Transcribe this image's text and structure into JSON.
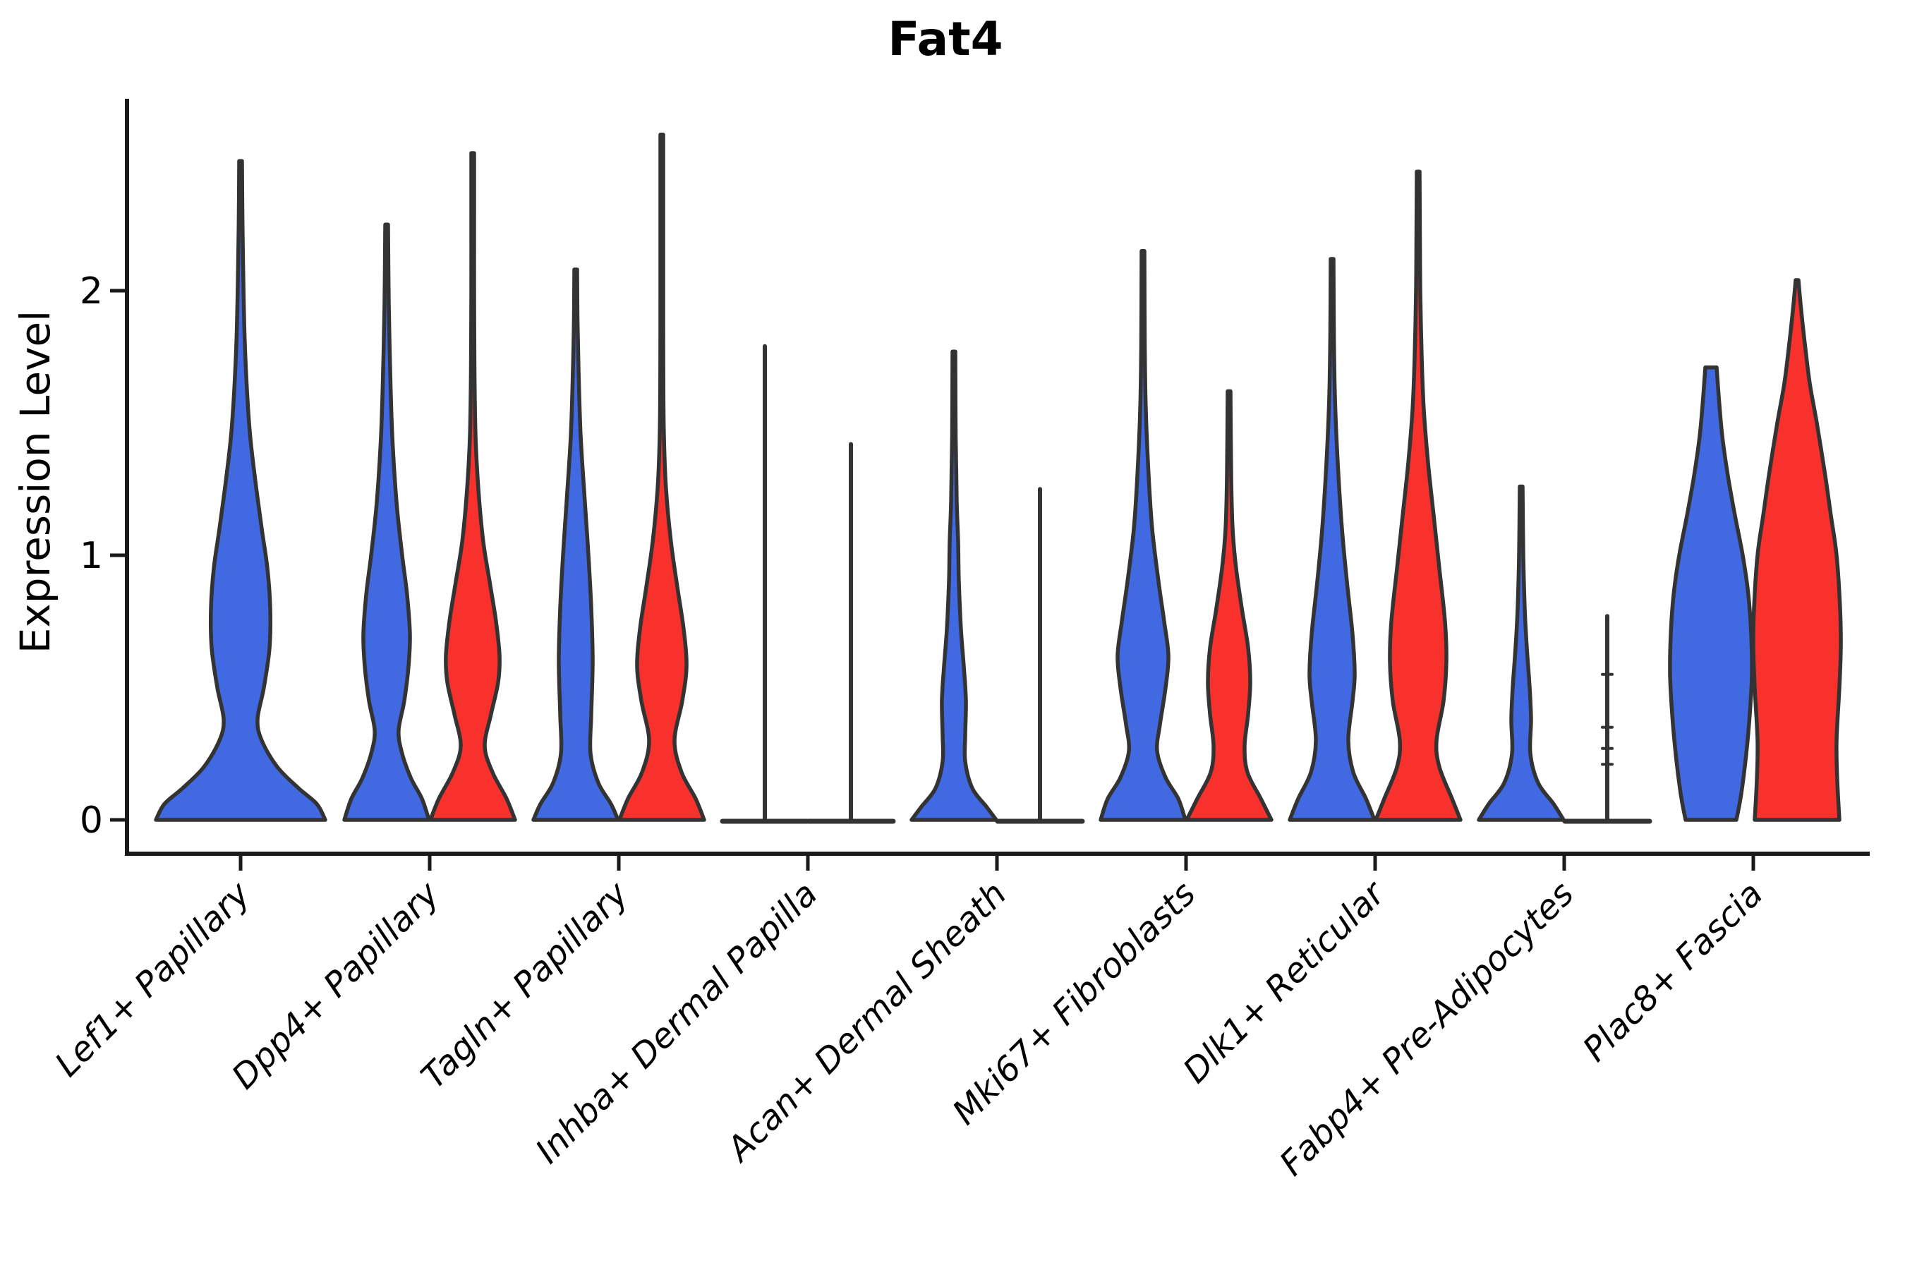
{
  "chart_data": {
    "type": "violin",
    "title": "Fat4",
    "ylabel": "Expression Level",
    "yticks": [
      0,
      1,
      2
    ],
    "ylim": [
      0,
      2.72
    ],
    "grid": false,
    "legend": "none",
    "colors": {
      "blue": "#4169E1",
      "red": "#F8312D",
      "outline": "#333333",
      "axis": "#1a1a1a"
    },
    "categories": [
      "Lef1+ Papillary",
      "Dpp4+ Papillary",
      "Tagln+ Papillary",
      "Inhba+ Dermal Papilla",
      "Acan+ Dermal Sheath",
      "Mki67+ Fibroblasts",
      "Dlk1+ Reticular",
      "Fabp4+ Pre-Adipocytes",
      "Plac8+ Fascia"
    ],
    "series": [
      {
        "name": "blue",
        "color": "#4169E1",
        "max_expression": [
          2.49,
          2.25,
          2.08,
          1.79,
          1.77,
          2.15,
          2.12,
          1.26,
          1.71
        ]
      },
      {
        "name": "red",
        "color": "#F8312D",
        "max_expression": [
          null,
          2.52,
          2.59,
          1.42,
          1.25,
          1.62,
          2.45,
          0.77,
          2.04
        ]
      }
    ],
    "violins": [
      {
        "category": 0,
        "series": "blue",
        "kind": "violin",
        "center_offset": 0,
        "profile": [
          [
            0,
            120
          ],
          [
            0.06,
            108
          ],
          [
            0.12,
            82
          ],
          [
            0.2,
            52
          ],
          [
            0.3,
            30
          ],
          [
            0.38,
            24
          ],
          [
            0.5,
            33
          ],
          [
            0.65,
            41
          ],
          [
            0.8,
            42
          ],
          [
            0.95,
            38
          ],
          [
            1.1,
            30
          ],
          [
            1.3,
            20
          ],
          [
            1.5,
            12
          ],
          [
            1.8,
            6
          ],
          [
            2.1,
            3.5
          ],
          [
            2.3,
            2.5
          ],
          [
            2.49,
            2
          ]
        ]
      },
      {
        "category": 1,
        "series": "blue",
        "kind": "violin",
        "center_offset": -61,
        "profile": [
          [
            0,
            60
          ],
          [
            0.08,
            50
          ],
          [
            0.16,
            34
          ],
          [
            0.26,
            21
          ],
          [
            0.34,
            17
          ],
          [
            0.45,
            25
          ],
          [
            0.58,
            31
          ],
          [
            0.7,
            33
          ],
          [
            0.85,
            29
          ],
          [
            1.0,
            22
          ],
          [
            1.2,
            14
          ],
          [
            1.45,
            8
          ],
          [
            1.7,
            5
          ],
          [
            1.95,
            3
          ],
          [
            2.25,
            2
          ]
        ]
      },
      {
        "category": 1,
        "series": "red",
        "kind": "violin",
        "center_offset": 61,
        "profile": [
          [
            0,
            60
          ],
          [
            0.08,
            48
          ],
          [
            0.18,
            28
          ],
          [
            0.28,
            17
          ],
          [
            0.4,
            26
          ],
          [
            0.52,
            36
          ],
          [
            0.62,
            38
          ],
          [
            0.75,
            33
          ],
          [
            0.9,
            24
          ],
          [
            1.05,
            15
          ],
          [
            1.25,
            8
          ],
          [
            1.45,
            4
          ],
          [
            1.7,
            2.5
          ],
          [
            2.0,
            2
          ],
          [
            2.3,
            2
          ],
          [
            2.52,
            2
          ]
        ]
      },
      {
        "category": 2,
        "series": "blue",
        "kind": "violin",
        "center_offset": -61,
        "profile": [
          [
            0,
            60
          ],
          [
            0.06,
            50
          ],
          [
            0.14,
            32
          ],
          [
            0.25,
            21
          ],
          [
            0.4,
            22
          ],
          [
            0.6,
            24
          ],
          [
            0.8,
            22
          ],
          [
            1.0,
            18
          ],
          [
            1.2,
            13
          ],
          [
            1.45,
            7
          ],
          [
            1.7,
            4
          ],
          [
            1.9,
            2.5
          ],
          [
            2.08,
            2
          ]
        ]
      },
      {
        "category": 2,
        "series": "red",
        "kind": "violin",
        "center_offset": 61,
        "profile": [
          [
            0,
            60
          ],
          [
            0.08,
            48
          ],
          [
            0.18,
            28
          ],
          [
            0.3,
            18
          ],
          [
            0.45,
            29
          ],
          [
            0.58,
            35
          ],
          [
            0.72,
            31
          ],
          [
            0.88,
            22
          ],
          [
            1.05,
            13
          ],
          [
            1.25,
            6
          ],
          [
            1.45,
            3
          ],
          [
            1.65,
            2.2
          ],
          [
            2.0,
            2
          ],
          [
            2.3,
            2
          ],
          [
            2.59,
            2
          ]
        ]
      },
      {
        "category": 3,
        "series": "blue",
        "kind": "collapsed",
        "center_offset": -61,
        "tip": 1.79
      },
      {
        "category": 3,
        "series": "red",
        "kind": "collapsed",
        "center_offset": 61,
        "tip": 1.42
      },
      {
        "category": 4,
        "series": "blue",
        "kind": "violin",
        "center_offset": -61,
        "profile": [
          [
            0,
            60
          ],
          [
            0.05,
            46
          ],
          [
            0.12,
            26
          ],
          [
            0.22,
            16
          ],
          [
            0.32,
            16
          ],
          [
            0.45,
            17
          ],
          [
            0.58,
            14
          ],
          [
            0.72,
            10
          ],
          [
            0.9,
            7
          ],
          [
            1.05,
            6
          ],
          [
            1.2,
            4
          ],
          [
            1.45,
            2.5
          ],
          [
            1.77,
            2
          ]
        ]
      },
      {
        "category": 4,
        "series": "red",
        "kind": "collapsed",
        "center_offset": 61,
        "tip": 1.25
      },
      {
        "category": 5,
        "series": "blue",
        "kind": "violin",
        "center_offset": -61,
        "profile": [
          [
            0,
            60
          ],
          [
            0.08,
            50
          ],
          [
            0.16,
            32
          ],
          [
            0.26,
            20
          ],
          [
            0.36,
            24
          ],
          [
            0.5,
            32
          ],
          [
            0.62,
            36
          ],
          [
            0.75,
            30
          ],
          [
            0.9,
            22
          ],
          [
            1.1,
            13
          ],
          [
            1.3,
            8
          ],
          [
            1.55,
            4
          ],
          [
            1.8,
            2.5
          ],
          [
            2.15,
            2
          ]
        ]
      },
      {
        "category": 5,
        "series": "red",
        "kind": "violin",
        "center_offset": 61,
        "profile": [
          [
            0,
            60
          ],
          [
            0.08,
            45
          ],
          [
            0.18,
            26
          ],
          [
            0.28,
            22
          ],
          [
            0.4,
            27
          ],
          [
            0.52,
            30
          ],
          [
            0.65,
            27
          ],
          [
            0.8,
            18
          ],
          [
            0.95,
            10
          ],
          [
            1.1,
            5
          ],
          [
            1.3,
            3
          ],
          [
            1.62,
            2
          ]
        ]
      },
      {
        "category": 6,
        "series": "blue",
        "kind": "violin",
        "center_offset": -61,
        "profile": [
          [
            0,
            60
          ],
          [
            0.08,
            48
          ],
          [
            0.18,
            30
          ],
          [
            0.3,
            23
          ],
          [
            0.45,
            29
          ],
          [
            0.55,
            32
          ],
          [
            0.7,
            29
          ],
          [
            0.9,
            21
          ],
          [
            1.1,
            14
          ],
          [
            1.35,
            8
          ],
          [
            1.6,
            4
          ],
          [
            1.85,
            2.5
          ],
          [
            2.12,
            2
          ]
        ]
      },
      {
        "category": 6,
        "series": "red",
        "kind": "violin",
        "center_offset": 61,
        "profile": [
          [
            0,
            60
          ],
          [
            0.08,
            48
          ],
          [
            0.2,
            30
          ],
          [
            0.3,
            26
          ],
          [
            0.45,
            36
          ],
          [
            0.6,
            40
          ],
          [
            0.75,
            38
          ],
          [
            0.95,
            30
          ],
          [
            1.15,
            22
          ],
          [
            1.35,
            14
          ],
          [
            1.55,
            8
          ],
          [
            1.75,
            5
          ],
          [
            2.0,
            3
          ],
          [
            2.2,
            2.5
          ],
          [
            2.45,
            2
          ]
        ]
      },
      {
        "category": 7,
        "series": "blue",
        "kind": "violin",
        "center_offset": -61,
        "profile": [
          [
            0,
            60
          ],
          [
            0.06,
            46
          ],
          [
            0.14,
            24
          ],
          [
            0.25,
            13
          ],
          [
            0.38,
            14
          ],
          [
            0.5,
            12
          ],
          [
            0.65,
            8
          ],
          [
            0.8,
            5
          ],
          [
            1.0,
            3
          ],
          [
            1.26,
            2
          ]
        ]
      },
      {
        "category": 7,
        "series": "red",
        "kind": "collapsed",
        "center_offset": 61,
        "tip": 0.77,
        "dots": [
          0.55,
          0.35,
          0.27,
          0.21
        ]
      },
      {
        "category": 8,
        "series": "blue",
        "kind": "violin",
        "center_offset": -60,
        "profile": [
          [
            0,
            36
          ],
          [
            0.1,
            43
          ],
          [
            0.25,
            50
          ],
          [
            0.4,
            55
          ],
          [
            0.55,
            58
          ],
          [
            0.7,
            57
          ],
          [
            0.85,
            53
          ],
          [
            1.0,
            45
          ],
          [
            1.15,
            34
          ],
          [
            1.3,
            24
          ],
          [
            1.45,
            16
          ],
          [
            1.6,
            11
          ],
          [
            1.71,
            8
          ]
        ]
      },
      {
        "category": 8,
        "series": "red",
        "kind": "violin",
        "center_offset": 62,
        "profile": [
          [
            0,
            60
          ],
          [
            0.15,
            57
          ],
          [
            0.3,
            56
          ],
          [
            0.5,
            60
          ],
          [
            0.65,
            62
          ],
          [
            0.8,
            61
          ],
          [
            1.0,
            56
          ],
          [
            1.15,
            48
          ],
          [
            1.3,
            40
          ],
          [
            1.5,
            28
          ],
          [
            1.65,
            18
          ],
          [
            1.8,
            11
          ],
          [
            1.95,
            5
          ],
          [
            2.04,
            2
          ]
        ]
      }
    ]
  }
}
